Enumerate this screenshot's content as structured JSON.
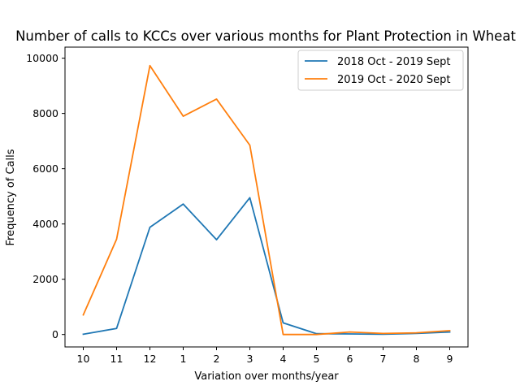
{
  "chart_data": {
    "type": "line",
    "title": "Number of calls to KCCs over various months for Plant Protection in Wheat",
    "xlabel": "Variation over months/year",
    "ylabel": "Frequency of Calls",
    "categories": [
      "10",
      "11",
      "12",
      "1",
      "2",
      "3",
      "4",
      "5",
      "6",
      "7",
      "8",
      "9"
    ],
    "yticks": [
      "0",
      "2000",
      "4000",
      "6000",
      "8000",
      "10000"
    ],
    "ylim": [
      -450,
      10400
    ],
    "grid": false,
    "legend_position": "top-right",
    "series": [
      {
        "name": "2018 Oct - 2019 Sept",
        "color": "#1f77b4",
        "values": [
          10,
          220,
          3880,
          4720,
          3430,
          4950,
          420,
          30,
          20,
          10,
          40,
          90
        ]
      },
      {
        "name": "2019 Oct - 2020 Sept",
        "color": "#ff7f0e",
        "values": [
          710,
          3450,
          9730,
          7900,
          8520,
          6850,
          0,
          0,
          90,
          40,
          60,
          140
        ]
      }
    ]
  }
}
